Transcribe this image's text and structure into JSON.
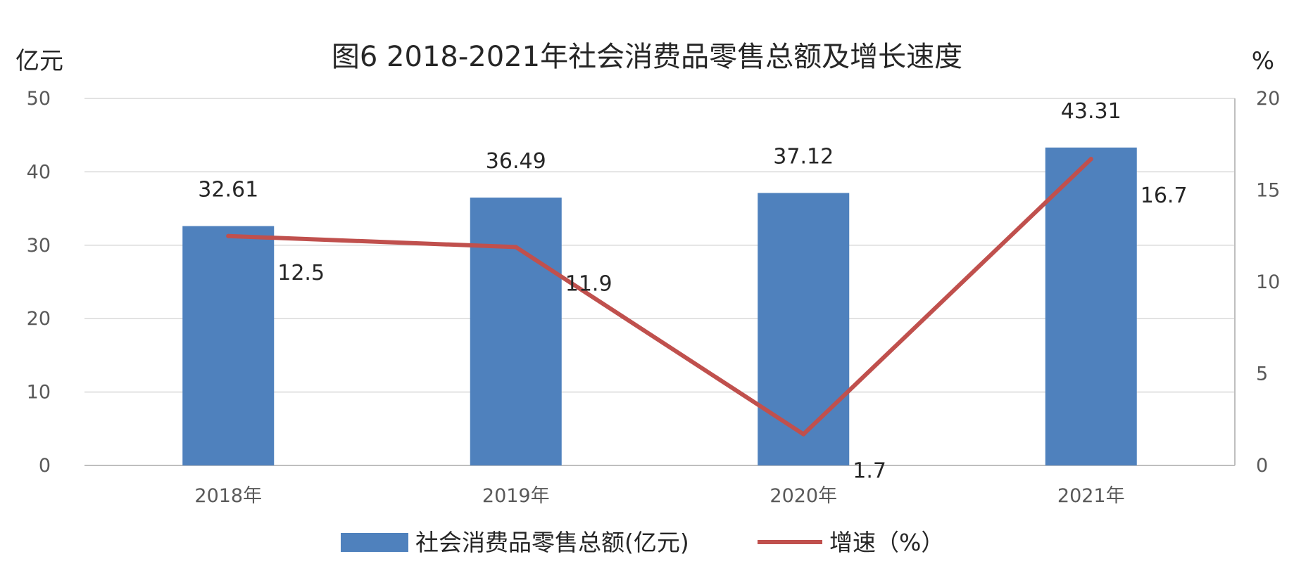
{
  "chart_data": {
    "type": "bar",
    "title": "图6 2018-2021年社会消费品零售总额及增长速度",
    "categories": [
      "2018年",
      "2019年",
      "2020年",
      "2021年"
    ],
    "left_axis": {
      "unit": "亿元",
      "ylim": [
        0,
        50
      ],
      "ticks": [
        0,
        10,
        20,
        30,
        40,
        50
      ]
    },
    "right_axis": {
      "unit": "%",
      "ylim": [
        0,
        20
      ],
      "ticks": [
        0,
        5,
        10,
        15,
        20
      ]
    },
    "grid": true,
    "legend": "bottom",
    "series": [
      {
        "name": "社会消费品零售总额(亿元)",
        "kind": "bar",
        "axis": "left",
        "color": "#4f81bd",
        "values": [
          32.61,
          36.49,
          37.12,
          43.31
        ],
        "labels": [
          "32.61",
          "36.49",
          "37.12",
          "43.31"
        ]
      },
      {
        "name": "增速（%）",
        "kind": "line",
        "axis": "right",
        "color": "#c0504d",
        "values": [
          12.5,
          11.9,
          1.7,
          16.7
        ],
        "labels": [
          "12.5",
          "11.9",
          "1.7",
          "16.7"
        ]
      }
    ]
  }
}
